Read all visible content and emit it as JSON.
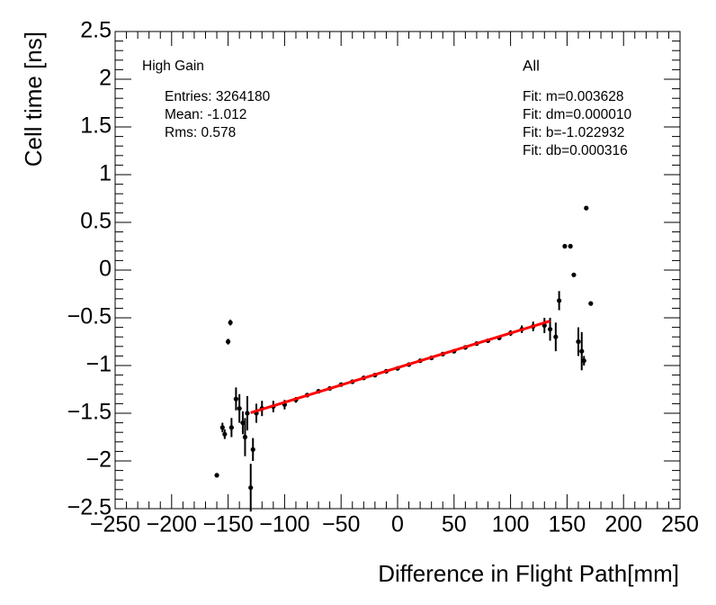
{
  "chart_data": {
    "type": "scatter",
    "x_label": "Difference in Flight Path[mm]",
    "y_label": "Cell time [ns]",
    "xlim": [
      -250,
      250
    ],
    "ylim": [
      -2.5,
      2.5
    ],
    "xticks": [
      {
        "value": -250,
        "label": "−250"
      },
      {
        "value": -200,
        "label": "−200"
      },
      {
        "value": -150,
        "label": "−150"
      },
      {
        "value": -100,
        "label": "−100"
      },
      {
        "value": -50,
        "label": "−50"
      },
      0,
      50,
      100,
      150,
      200,
      250
    ],
    "yticks": [
      {
        "value": -2.5,
        "label": "−2.5"
      },
      {
        "value": -2,
        "label": "−2"
      },
      {
        "value": -1.5,
        "label": "−1.5"
      },
      {
        "value": -1,
        "label": "−1"
      },
      {
        "value": -0.5,
        "label": "−0.5"
      },
      0,
      0.5,
      1,
      1.5,
      2,
      2.5
    ],
    "series": [
      {
        "color": "#000000",
        "x": [
          -160,
          -155,
          -153,
          -150,
          -148,
          -147,
          -143,
          -140,
          -137,
          -135,
          -133,
          -130,
          -128,
          -125,
          -120,
          -110,
          -100,
          -90,
          -80,
          -70,
          -60,
          -50,
          -40,
          -30,
          -20,
          -10,
          0,
          10,
          20,
          30,
          40,
          50,
          60,
          70,
          80,
          90,
          100,
          110,
          120,
          130,
          135,
          140,
          143,
          148,
          153,
          156,
          160,
          163,
          165,
          167,
          171
        ],
        "values": [
          -2.15,
          -1.65,
          -1.72,
          -0.75,
          -0.55,
          -1.65,
          -1.35,
          -1.45,
          -1.6,
          -1.75,
          -1.5,
          -2.28,
          -1.88,
          -1.5,
          -1.45,
          -1.43,
          -1.41,
          -1.36,
          -1.31,
          -1.27,
          -1.24,
          -1.2,
          -1.17,
          -1.13,
          -1.1,
          -1.06,
          -1.03,
          -0.99,
          -0.95,
          -0.92,
          -0.88,
          -0.85,
          -0.81,
          -0.77,
          -0.74,
          -0.71,
          -0.66,
          -0.62,
          -0.59,
          -0.58,
          -0.62,
          -0.7,
          -0.32,
          0.25,
          0.25,
          -0.05,
          -0.75,
          -0.85,
          -0.95,
          0.65,
          -0.35
        ],
        "errors": [
          0.02,
          0.05,
          0.05,
          0.03,
          0.03,
          0.1,
          0.12,
          0.15,
          0.12,
          0.2,
          0.18,
          0.25,
          0.12,
          0.1,
          0.08,
          0.06,
          0.05,
          0.03,
          0.02,
          0.02,
          0.01,
          0.01,
          0.01,
          0.01,
          0.01,
          0.01,
          0.01,
          0.01,
          0.01,
          0.01,
          0.01,
          0.01,
          0.01,
          0.02,
          0.02,
          0.02,
          0.03,
          0.04,
          0.05,
          0.08,
          0.12,
          0.15,
          0.1,
          0.02,
          0.02,
          0.02,
          0.15,
          0.2,
          0.05,
          0.02,
          0.02
        ]
      }
    ],
    "fit": {
      "color": "#ff0000",
      "m": 0.003628,
      "b": -1.022932,
      "x_range": [
        -130,
        135
      ]
    },
    "annotations": {
      "gain": "High Gain",
      "entries": "Entries: 3264180",
      "mean": "Mean: -1.012",
      "rms": "Rms: 0.578",
      "selection": "All",
      "fit_m": "Fit: m=0.003628",
      "fit_dm": "Fit: dm=0.000010",
      "fit_b": "Fit: b=-1.022932",
      "fit_db": "Fit: db=0.000316"
    }
  }
}
